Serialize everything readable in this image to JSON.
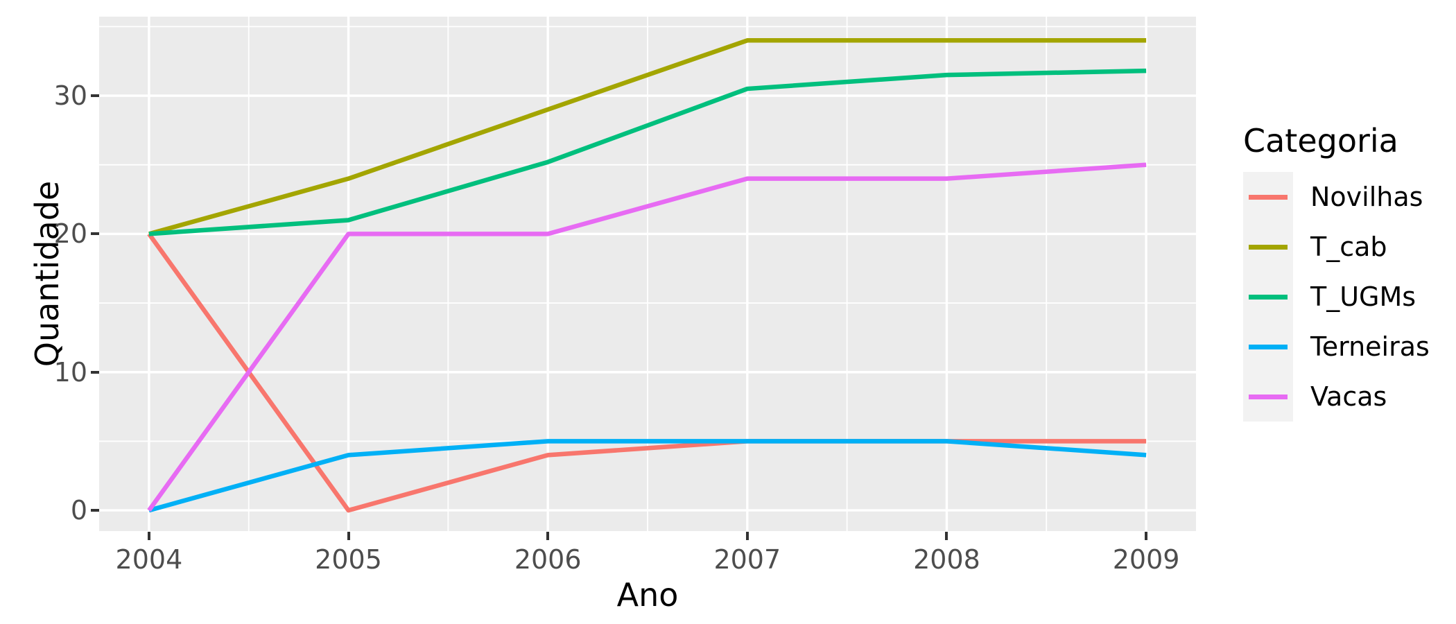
{
  "chart_data": {
    "type": "line",
    "title": "",
    "xlabel": "Ano",
    "ylabel": "Quantidade",
    "legend_title": "Categoria",
    "legend_position": "right",
    "grid": true,
    "x": [
      2004,
      2005,
      2006,
      2007,
      2008,
      2009
    ],
    "x_tick_labels": [
      "2004",
      "2005",
      "2006",
      "2007",
      "2008",
      "2009"
    ],
    "y_tick_values": [
      0,
      10,
      20,
      30
    ],
    "y_tick_labels": [
      "0",
      "10",
      "20",
      "30"
    ],
    "xlim": [
      2003.75,
      2009.25
    ],
    "ylim": [
      -1.5,
      35.72
    ],
    "x_minor": [
      2004.5,
      2005.5,
      2006.5,
      2007.5,
      2008.5
    ],
    "y_minor": [
      5,
      15,
      25,
      35
    ],
    "series": [
      {
        "name": "Novilhas",
        "color": "#F8766D",
        "values": [
          20,
          0,
          4,
          5,
          5,
          5
        ]
      },
      {
        "name": "T_cab",
        "color": "#A3A500",
        "values": [
          20,
          24,
          29,
          34,
          34,
          34
        ]
      },
      {
        "name": "T_UGMs",
        "color": "#00BF7D",
        "values": [
          20,
          21,
          25.2,
          30.5,
          31.5,
          31.8
        ]
      },
      {
        "name": "Terneiras",
        "color": "#00B0F6",
        "values": [
          0,
          4,
          5,
          5,
          5,
          4
        ]
      },
      {
        "name": "Vacas",
        "color": "#E76BF3",
        "values": [
          0,
          20,
          20,
          24,
          24,
          25
        ]
      }
    ],
    "style": {
      "panel_bg": "#EBEBEB",
      "grid_color": "#FFFFFF",
      "tick_color": "#333333",
      "tick_label_color": "#4D4D4D",
      "legend_key_bg": "#F2F2F2"
    }
  }
}
